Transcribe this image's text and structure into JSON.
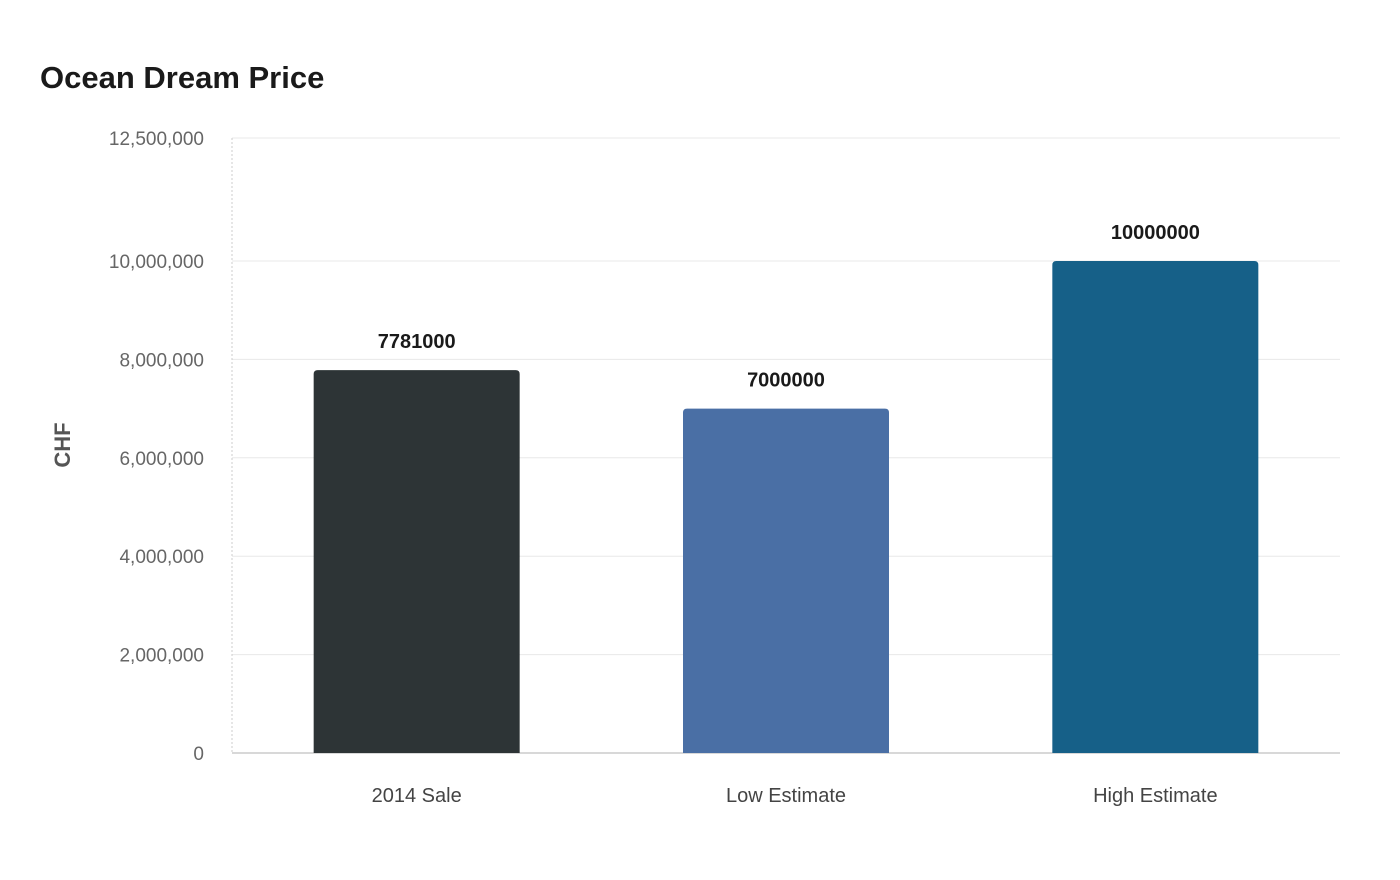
{
  "chart_data": {
    "type": "bar",
    "title": "Ocean Dream Price",
    "xlabel": "",
    "ylabel": "CHF",
    "categories": [
      "2014 Sale",
      "Low Estimate",
      "High Estimate"
    ],
    "values": [
      7781000,
      7000000,
      10000000
    ],
    "data_labels": [
      "7781000",
      "7000000",
      "10000000"
    ],
    "colors": [
      "#2d3436",
      "#4a6fa5",
      "#166088"
    ],
    "ylim": [
      0,
      12500000
    ],
    "yticks": [
      0,
      2000000,
      4000000,
      6000000,
      8000000,
      10000000,
      12500000
    ],
    "ytick_labels": [
      "0",
      "2,000,000",
      "4,000,000",
      "6,000,000",
      "8,000,000",
      "10,000,000",
      "12,500,000"
    ],
    "grid": true,
    "legend": "none"
  }
}
